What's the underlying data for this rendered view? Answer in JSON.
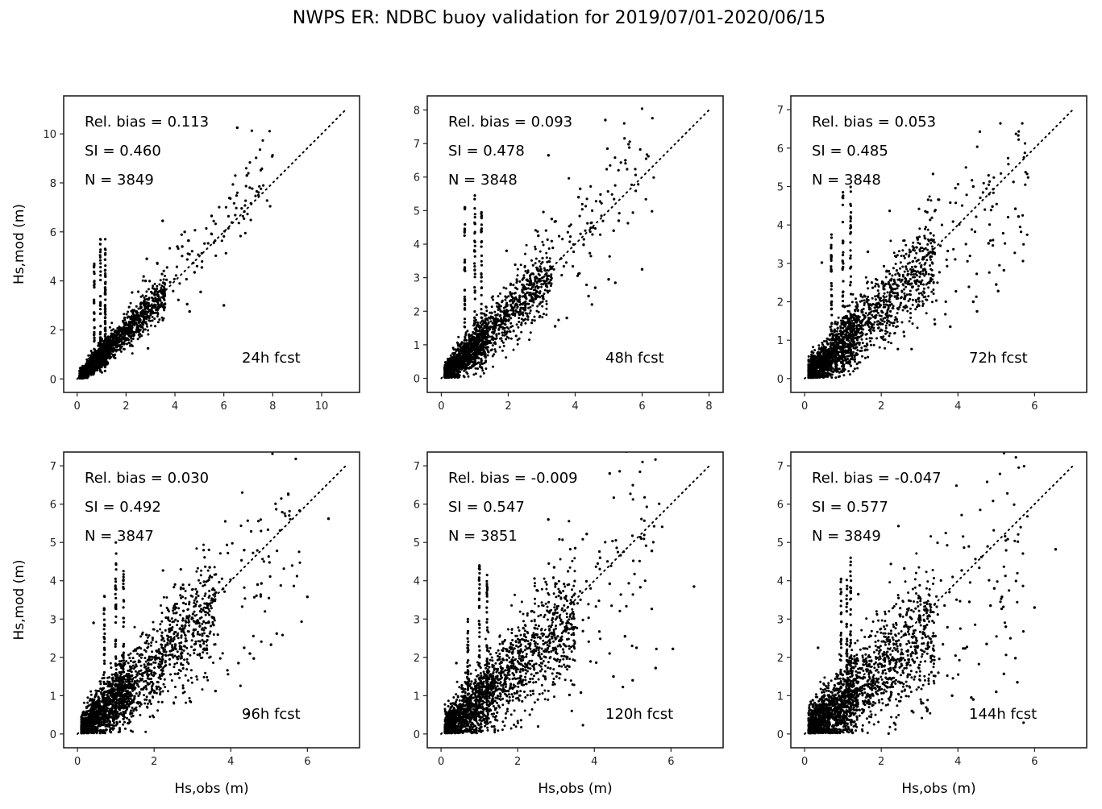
{
  "chart_data": {
    "type": "scatter",
    "title": "NWPS ER: NDBC buoy validation for 2019/07/01-2020/06/15",
    "layout": "2x3 grid",
    "panels": [
      {
        "label": "24h fcst",
        "stats": {
          "rel_bias": "Rel. bias =  0.113",
          "si": "SI =  0.460",
          "n": "N = 3849"
        },
        "xlabel": "",
        "ylabel": "Hs,mod (m)",
        "xlim": [
          -0.55,
          11.55
        ],
        "ylim": [
          -0.55,
          11.55
        ],
        "xticks": [
          0,
          2,
          4,
          6,
          8,
          10
        ],
        "yticks": [
          0,
          2,
          4,
          6,
          8,
          10
        ],
        "one_to_one_max": 11,
        "cluster": {
          "n": 1700,
          "spread": 0.22,
          "bias": 1.05,
          "xmax": 3.5
        },
        "columns": [
          [
            0.95,
            5.7
          ],
          [
            1.15,
            5.7
          ],
          [
            0.7,
            4.7
          ],
          [
            1.15,
            4.3
          ]
        ],
        "outliers": [
          [
            6.55,
            10.25
          ],
          [
            3.5,
            6.45
          ],
          [
            5.5,
            6.65
          ],
          [
            4.4,
            6.0
          ],
          [
            4.3,
            5.4
          ],
          [
            4.1,
            5.4
          ],
          [
            6.0,
            3.0
          ],
          [
            5.1,
            4.55
          ],
          [
            5.05,
            3.55
          ],
          [
            2.85,
            4.9
          ],
          [
            4.6,
            2.75
          ],
          [
            2.9,
            1.25
          ],
          [
            2.8,
            4.0
          ],
          [
            4.8,
            4.35
          ],
          [
            4.5,
            3.05
          ]
        ]
      },
      {
        "label": "48h fcst",
        "stats": {
          "rel_bias": "Rel. bias =  0.093",
          "si": "SI =  0.478",
          "n": "N = 3848"
        },
        "xlabel": "",
        "ylabel": "",
        "xlim": [
          -0.42,
          8.42
        ],
        "ylim": [
          -0.42,
          8.42
        ],
        "xticks": [
          0,
          2,
          4,
          6,
          8
        ],
        "yticks": [
          0,
          1,
          2,
          3,
          4,
          5,
          6,
          7,
          8
        ],
        "one_to_one_max": 8,
        "cluster": {
          "n": 1700,
          "spread": 0.28,
          "bias": 1.03,
          "xmax": 3.2
        },
        "columns": [
          [
            0.7,
            5.1
          ],
          [
            1.0,
            5.45
          ],
          [
            1.2,
            4.95
          ]
        ],
        "outliers": [
          [
            4.9,
            7.7
          ],
          [
            3.2,
            6.65
          ],
          [
            5.5,
            6.5
          ],
          [
            4.15,
            5.65
          ],
          [
            4.1,
            5.4
          ],
          [
            6.0,
            3.25
          ],
          [
            5.0,
            2.95
          ],
          [
            5.2,
            2.85
          ],
          [
            3.3,
            4.75
          ],
          [
            4.5,
            2.2
          ],
          [
            4.4,
            2.45
          ],
          [
            3.75,
            1.8
          ],
          [
            3.4,
            1.55
          ],
          [
            2.9,
            4.25
          ],
          [
            1.95,
            3.8
          ],
          [
            4.6,
            2.7
          ],
          [
            5.3,
            4.7
          ],
          [
            5.15,
            4.4
          ]
        ]
      },
      {
        "label": "72h fcst",
        "stats": {
          "rel_bias": "Rel. bias =  0.053",
          "si": "SI =  0.485",
          "n": "N = 3848"
        },
        "xlabel": "",
        "ylabel": "",
        "xlim": [
          -0.36,
          7.36
        ],
        "ylim": [
          -0.36,
          7.36
        ],
        "xticks": [
          0,
          2,
          4,
          6
        ],
        "yticks": [
          0,
          1,
          2,
          3,
          4,
          5,
          6,
          7
        ],
        "one_to_one_max": 7,
        "cluster": {
          "n": 1800,
          "spread": 0.33,
          "bias": 1.0,
          "xmax": 3.3
        },
        "columns": [
          [
            0.7,
            3.75
          ],
          [
            1.0,
            4.85
          ],
          [
            1.2,
            4.99
          ]
        ],
        "outliers": [
          [
            4.4,
            5.0
          ],
          [
            5.45,
            5.12
          ],
          [
            5.5,
            4.42
          ],
          [
            5.58,
            4.22
          ],
          [
            5.2,
            2.82
          ],
          [
            5.0,
            2.45
          ],
          [
            5.05,
            2.28
          ],
          [
            4.5,
            1.75
          ],
          [
            4.4,
            2.0
          ],
          [
            3.8,
            1.35
          ],
          [
            3.4,
            1.42
          ],
          [
            4.8,
            3.52
          ],
          [
            4.9,
            4.48
          ],
          [
            3.2,
            4.33
          ],
          [
            1.65,
            3.3
          ],
          [
            0.45,
            3.02
          ],
          [
            1.5,
            1.5
          ]
        ]
      },
      {
        "label": "96h fcst",
        "stats": {
          "rel_bias": "Rel. bias =  0.030",
          "si": "SI =  0.492",
          "n": "N = 3847"
        },
        "xlabel": "Hs,obs (m)",
        "ylabel": "Hs,mod (m)",
        "xlim": [
          -0.36,
          7.36
        ],
        "ylim": [
          -0.36,
          7.36
        ],
        "xticks": [
          0,
          2,
          4,
          6
        ],
        "yticks": [
          0,
          1,
          2,
          3,
          4,
          5,
          6,
          7
        ],
        "one_to_one_max": 7,
        "cluster": {
          "n": 1900,
          "spread": 0.38,
          "bias": 0.98,
          "xmax": 3.5
        },
        "columns": [
          [
            1.0,
            5.0
          ],
          [
            1.2,
            4.25
          ],
          [
            0.7,
            3.6
          ]
        ],
        "outliers": [
          [
            5.5,
            6.25
          ],
          [
            6.55,
            5.62
          ],
          [
            6.0,
            3.58
          ],
          [
            5.2,
            2.62
          ],
          [
            5.05,
            2.33
          ],
          [
            4.6,
            1.97
          ],
          [
            4.2,
            1.85
          ],
          [
            3.6,
            1.12
          ],
          [
            4.35,
            4.8
          ],
          [
            3.45,
            4.35
          ],
          [
            4.8,
            3.93
          ],
          [
            4.7,
            3.9
          ],
          [
            4.35,
            2.25
          ],
          [
            4.5,
            2.1
          ],
          [
            0.42,
            2.9
          ],
          [
            2.7,
            3.82
          ]
        ]
      },
      {
        "label": "120h fcst",
        "stats": {
          "rel_bias": "Rel. bias = -0.009",
          "si": "SI =  0.547",
          "n": "N = 3851"
        },
        "xlabel": "Hs,obs (m)",
        "ylabel": "",
        "xlim": [
          -0.36,
          7.36
        ],
        "ylim": [
          -0.36,
          7.36
        ],
        "xticks": [
          0,
          2,
          4,
          6
        ],
        "yticks": [
          0,
          1,
          2,
          3,
          4,
          5,
          6,
          7
        ],
        "one_to_one_max": 7,
        "cluster": {
          "n": 1900,
          "spread": 0.42,
          "bias": 0.95,
          "xmax": 3.4
        },
        "columns": [
          [
            1.0,
            4.4
          ],
          [
            1.2,
            4.15
          ],
          [
            0.7,
            3.0
          ]
        ],
        "outliers": [
          [
            4.4,
            6.8
          ],
          [
            2.8,
            5.6
          ],
          [
            3.8,
            5.22
          ],
          [
            3.5,
            4.85
          ],
          [
            5.5,
            4.78
          ],
          [
            4.15,
            4.6
          ],
          [
            2.95,
            4.35
          ],
          [
            6.6,
            3.85
          ],
          [
            5.2,
            3.83
          ],
          [
            6.05,
            2.22
          ],
          [
            5.6,
            1.72
          ],
          [
            5.0,
            1.4
          ],
          [
            4.5,
            1.5
          ],
          [
            4.8,
            2.55
          ],
          [
            3.35,
            1.02
          ],
          [
            3.65,
            1.08
          ],
          [
            2.5,
            3.75
          ],
          [
            4.4,
            3.92
          ],
          [
            0.4,
            1.85
          ],
          [
            5.1,
            2.25
          ]
        ]
      },
      {
        "label": "144h fcst",
        "stats": {
          "rel_bias": "Rel. bias = -0.047",
          "si": "SI =  0.577",
          "n": "N = 3849"
        },
        "xlabel": "Hs,obs (m)",
        "ylabel": "",
        "xlim": [
          -0.36,
          7.36
        ],
        "ylim": [
          -0.36,
          7.36
        ],
        "xticks": [
          0,
          2,
          4,
          6
        ],
        "yticks": [
          0,
          1,
          2,
          3,
          4,
          5,
          6,
          7
        ],
        "one_to_one_max": 7,
        "cluster": {
          "n": 1900,
          "spread": 0.45,
          "bias": 0.92,
          "xmax": 3.3
        },
        "columns": [
          [
            0.95,
            4.05
          ],
          [
            1.2,
            4.6
          ],
          [
            1.1,
            4.02
          ]
        ],
        "outliers": [
          [
            6.55,
            4.82
          ],
          [
            2.6,
            4.32
          ],
          [
            4.95,
            3.8
          ],
          [
            5.15,
            3.58
          ],
          [
            6.0,
            3.3
          ],
          [
            5.25,
            2.8
          ],
          [
            5.5,
            1.98
          ],
          [
            5.2,
            1.57
          ],
          [
            5.55,
            1.35
          ],
          [
            5.0,
            1.1
          ],
          [
            4.4,
            0.9
          ],
          [
            4.35,
            0.95
          ],
          [
            3.85,
            1.0
          ],
          [
            3.2,
            0.6
          ],
          [
            2.8,
            0.6
          ],
          [
            3.05,
            0.8
          ],
          [
            1.4,
            3.65
          ],
          [
            0.35,
            2.25
          ],
          [
            4.3,
            3.45
          ],
          [
            4.85,
            3.35
          ],
          [
            4.75,
            2.35
          ],
          [
            4.1,
            4.27
          ]
        ]
      }
    ]
  }
}
